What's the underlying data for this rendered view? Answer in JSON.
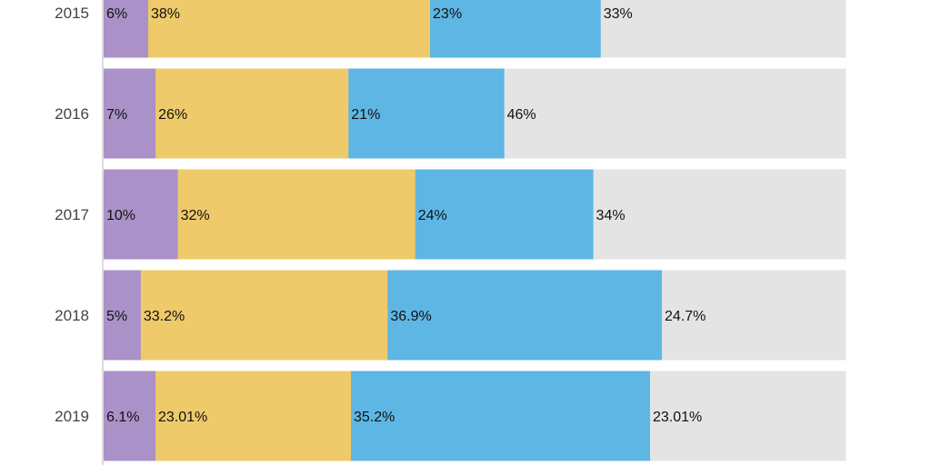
{
  "chart_data": {
    "type": "bar",
    "orientation": "horizontal",
    "stacked": true,
    "normalized": true,
    "categories": [
      "2015",
      "2016",
      "2017",
      "2018",
      "2019"
    ],
    "series": [
      {
        "values": [
          6,
          7,
          10,
          5,
          6.1
        ],
        "labels": [
          "6%",
          "7%",
          "10%",
          "5%",
          "6.1%"
        ],
        "color": "#aa92c8"
      },
      {
        "values": [
          38,
          26,
          32,
          33.2,
          23.01
        ],
        "labels": [
          "38%",
          "26%",
          "32%",
          "33.2%",
          "23.01%"
        ],
        "color": "#eeca6a"
      },
      {
        "values": [
          23,
          21,
          24,
          36.9,
          35.2
        ],
        "labels": [
          "23%",
          "21%",
          "24%",
          "36.9%",
          "35.2%"
        ],
        "color": "#5eb6e4"
      },
      {
        "values": [
          33,
          46,
          34,
          24.7,
          23.01
        ],
        "labels": [
          "33%",
          "46%",
          "34%",
          "24.7%",
          "23.01%"
        ],
        "color": "#e4e4e4"
      }
    ],
    "grid": false,
    "legend": "none",
    "title": "",
    "xlabel": "",
    "ylabel": ""
  }
}
